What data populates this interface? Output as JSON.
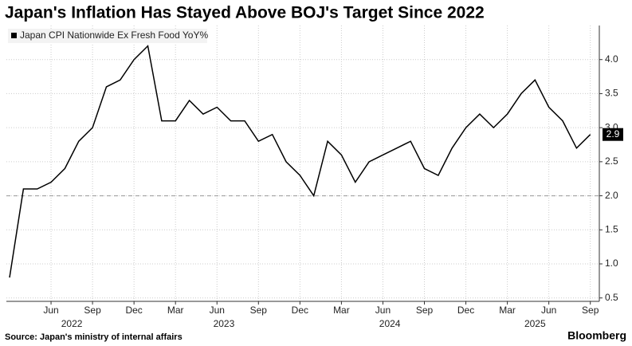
{
  "chart_data": {
    "type": "line",
    "title": "Japan's Inflation Has Stayed Above BOJ's Target Since 2022",
    "source": "Source: Japan's ministry of internal affairs",
    "brand": "Bloomberg",
    "x": [
      "2022-03",
      "2022-04",
      "2022-05",
      "2022-06",
      "2022-07",
      "2022-08",
      "2022-09",
      "2022-10",
      "2022-11",
      "2022-12",
      "2023-01",
      "2023-02",
      "2023-03",
      "2023-04",
      "2023-05",
      "2023-06",
      "2023-07",
      "2023-08",
      "2023-09",
      "2023-10",
      "2023-11",
      "2023-12",
      "2024-01",
      "2024-02",
      "2024-03",
      "2024-04",
      "2024-05",
      "2024-06",
      "2024-07",
      "2024-08",
      "2024-09",
      "2024-10",
      "2024-11",
      "2024-12",
      "2025-01",
      "2025-02",
      "2025-03",
      "2025-04",
      "2025-05",
      "2025-06",
      "2025-07",
      "2025-08",
      "2025-09"
    ],
    "series": [
      {
        "name": "Japan CPI Nationwide Ex Fresh Food YoY%",
        "color": "#000000",
        "values": [
          0.8,
          2.1,
          2.1,
          2.2,
          2.4,
          2.8,
          3.0,
          3.6,
          3.7,
          4.0,
          4.2,
          3.1,
          3.1,
          3.4,
          3.2,
          3.3,
          3.1,
          3.1,
          2.8,
          2.9,
          2.5,
          2.3,
          2.0,
          2.8,
          2.6,
          2.2,
          2.5,
          2.6,
          2.7,
          2.8,
          2.4,
          2.3,
          2.7,
          3.0,
          3.2,
          3.0,
          3.2,
          3.5,
          3.7,
          3.3,
          3.1,
          2.7,
          2.9
        ]
      }
    ],
    "xticks": [
      {
        "value": "2022-06",
        "label": "Jun"
      },
      {
        "value": "2022-09",
        "label": "Sep"
      },
      {
        "value": "2022-12",
        "label": "Dec"
      },
      {
        "value": "2023-03",
        "label": "Mar"
      },
      {
        "value": "2023-06",
        "label": "Jun"
      },
      {
        "value": "2023-09",
        "label": "Sep"
      },
      {
        "value": "2023-12",
        "label": "Dec"
      },
      {
        "value": "2024-03",
        "label": "Mar"
      },
      {
        "value": "2024-06",
        "label": "Jun"
      },
      {
        "value": "2024-09",
        "label": "Sep"
      },
      {
        "value": "2024-12",
        "label": "Dec"
      },
      {
        "value": "2025-03",
        "label": "Mar"
      },
      {
        "value": "2025-06",
        "label": "Jun"
      },
      {
        "value": "2025-09",
        "label": "Sep"
      }
    ],
    "years": [
      "2022",
      "2023",
      "2024",
      "2025"
    ],
    "ylim": [
      0.45,
      4.5
    ],
    "yticks": [
      {
        "value": 0.5,
        "label": "0.5"
      },
      {
        "value": 1,
        "label": "1.0"
      },
      {
        "value": 1.5,
        "label": "1.5"
      },
      {
        "value": 2,
        "label": "2.0"
      },
      {
        "value": 2.5,
        "label": "2.5"
      },
      {
        "value": 3,
        "label": "3.0"
      },
      {
        "value": 3.5,
        "label": "3.5"
      },
      {
        "value": 4,
        "label": "4.0"
      }
    ],
    "target": 2,
    "grid": true
  }
}
